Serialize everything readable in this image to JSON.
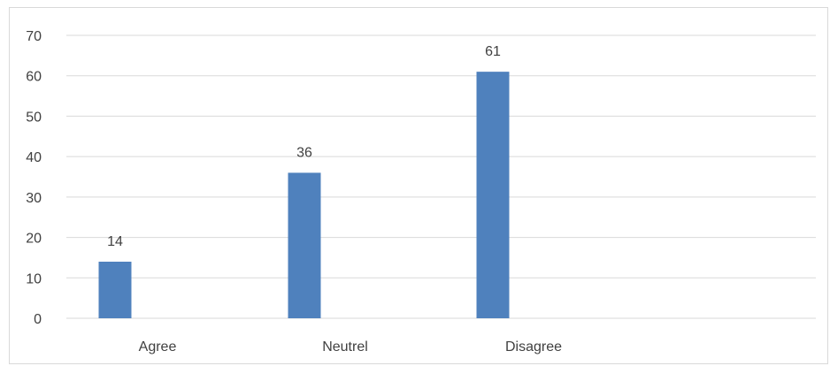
{
  "chart_data": {
    "type": "bar",
    "categories": [
      "Agree",
      "Neutrel",
      "Disagree"
    ],
    "series": [
      {
        "values": [
          14,
          36,
          61
        ],
        "color": "#4f81bd"
      }
    ],
    "ylim": [
      0,
      70
    ],
    "yticks": [
      0,
      10,
      20,
      30,
      40,
      50,
      60,
      70
    ],
    "data_labels": true,
    "grid": true,
    "legend": "none"
  }
}
